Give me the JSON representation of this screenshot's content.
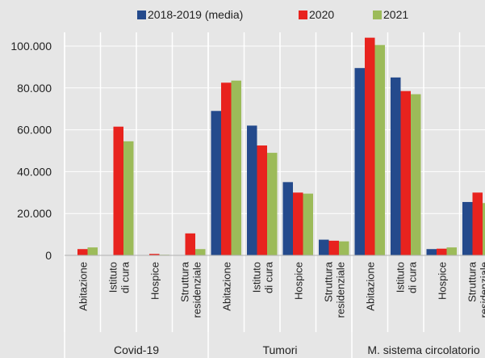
{
  "chart_data": {
    "type": "bar",
    "title": "",
    "xlabel": "",
    "ylabel": "",
    "ylim": [
      0,
      100000
    ],
    "yticks": [
      "0",
      "20.000",
      "40.000",
      "60.000",
      "80.000",
      "100.000"
    ],
    "ytick_values": [
      0,
      20000,
      40000,
      60000,
      80000,
      100000
    ],
    "legend_position": "top",
    "grid": "horizontal",
    "groups": [
      {
        "name": "Covid-19",
        "categories": [
          [
            "Abitazione"
          ],
          [
            "Istituto",
            "di cura"
          ],
          [
            "Hospice"
          ],
          [
            "Struttura",
            "residenziale"
          ]
        ]
      },
      {
        "name": "Tumori",
        "categories": [
          [
            "Abitazione"
          ],
          [
            "Istituto",
            "di cura"
          ],
          [
            "Hospice"
          ],
          [
            "Struttura",
            "residenziale"
          ]
        ]
      },
      {
        "name": "M. sistema circolatorio",
        "categories": [
          [
            "Abitazione"
          ],
          [
            "Istituto",
            "di cura"
          ],
          [
            "Hospice"
          ],
          [
            "Struttura",
            "residenziale"
          ]
        ]
      }
    ],
    "series": [
      {
        "name": "2018-2019 (media)",
        "color": "#244a8c",
        "values": [
          0,
          0,
          0,
          0,
          69000,
          62000,
          35000,
          7500,
          89500,
          85000,
          3000,
          25500
        ]
      },
      {
        "name": "2020",
        "color": "#e8231e",
        "values": [
          3000,
          61500,
          700,
          10500,
          82500,
          52500,
          30000,
          7000,
          104000,
          78500,
          3200,
          30000
        ]
      },
      {
        "name": "2021",
        "color": "#9cbb59",
        "values": [
          3800,
          54500,
          300,
          3000,
          83500,
          49000,
          29500,
          6700,
          100500,
          77000,
          3800,
          25000
        ]
      }
    ]
  }
}
